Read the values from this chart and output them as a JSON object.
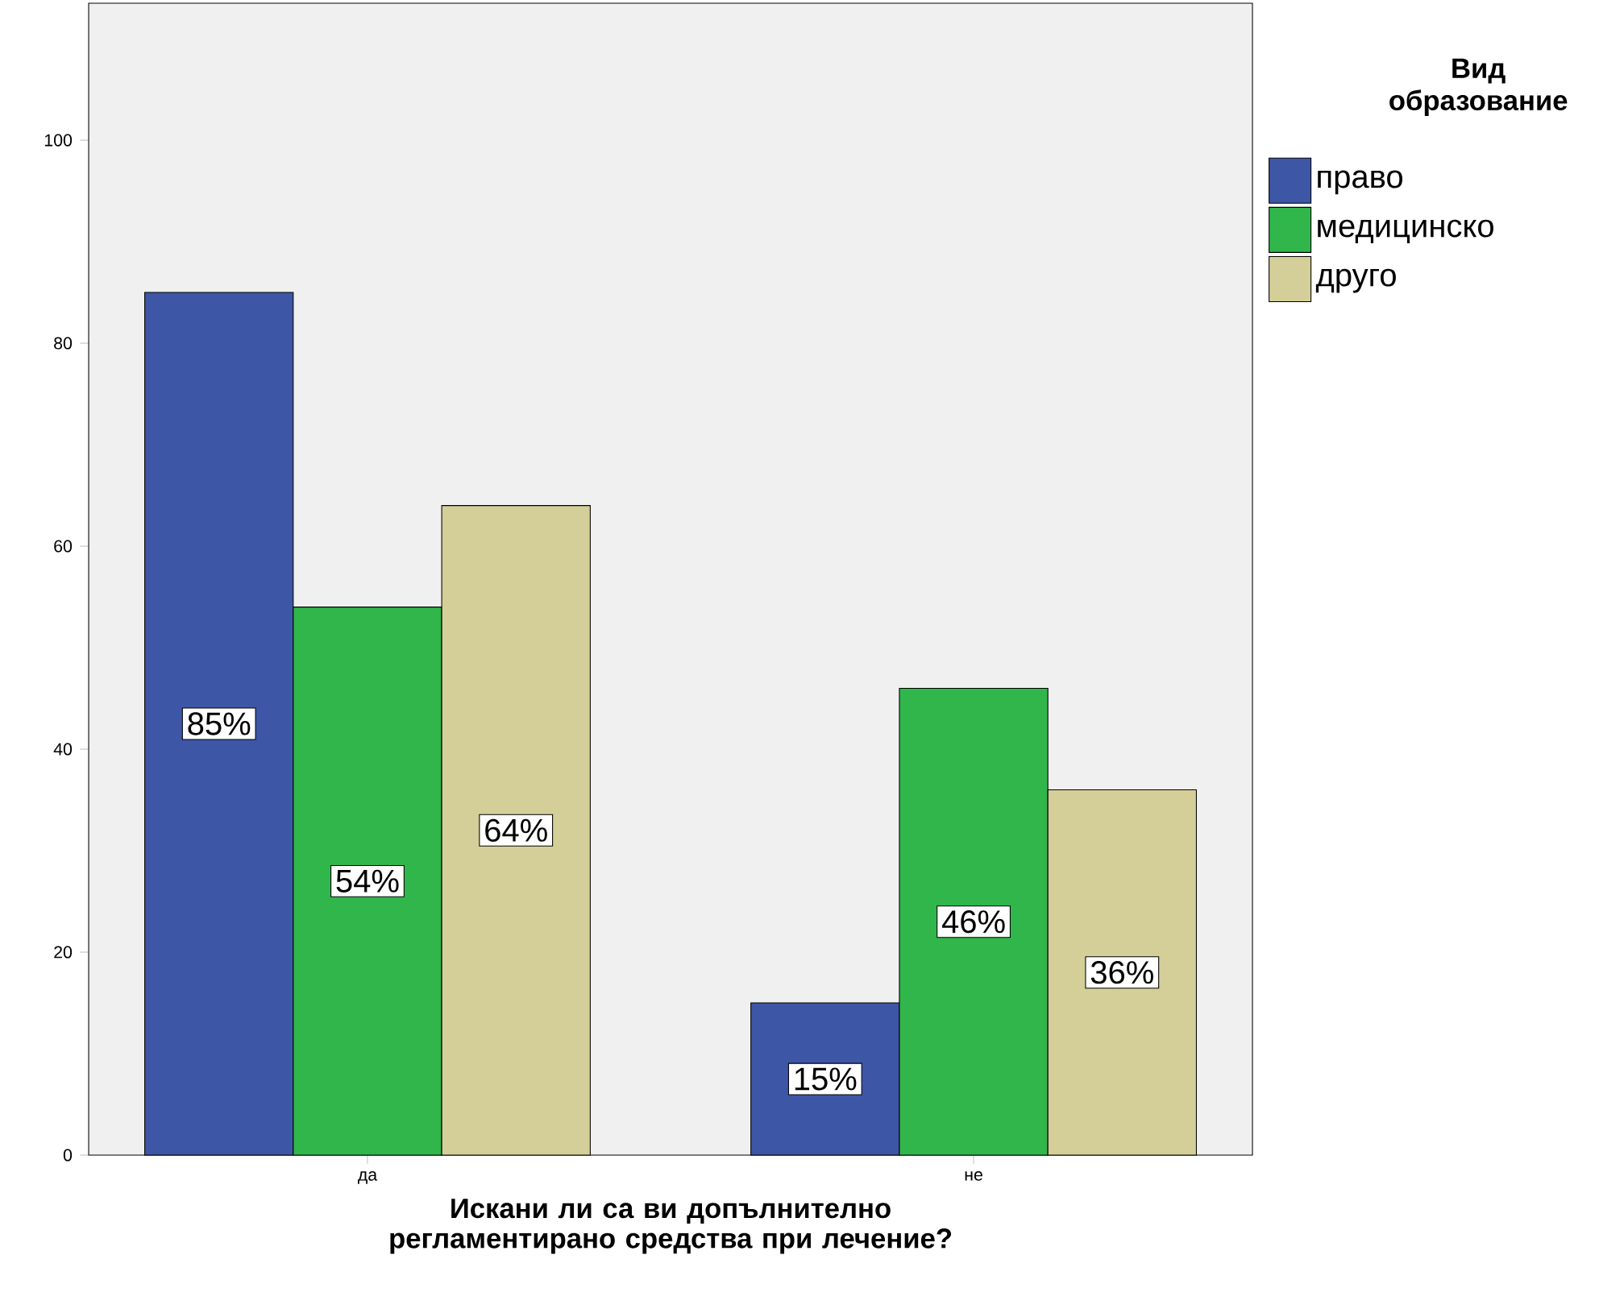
{
  "chart_data": {
    "type": "bar",
    "xlabel": "Искани ли са ви допълнително регламентирано средства при лечение?",
    "legend_title": "Вид образование",
    "categories": [
      "да",
      "не"
    ],
    "series": [
      {
        "name": "право",
        "color": "#3d56a6",
        "values": [
          85,
          15
        ],
        "value_labels": [
          "85%",
          "15%"
        ]
      },
      {
        "name": "медицинско",
        "color": "#30b64a",
        "values": [
          54,
          46
        ],
        "value_labels": [
          "54%",
          "46%"
        ]
      },
      {
        "name": "друго",
        "color": "#d4cf98",
        "values": [
          64,
          36
        ],
        "value_labels": [
          "64%",
          "36%"
        ]
      }
    ],
    "ylim": [
      0,
      113.5
    ],
    "yticks": [
      0,
      20,
      40,
      60,
      80,
      100
    ],
    "grid": false,
    "legend": "top right"
  }
}
